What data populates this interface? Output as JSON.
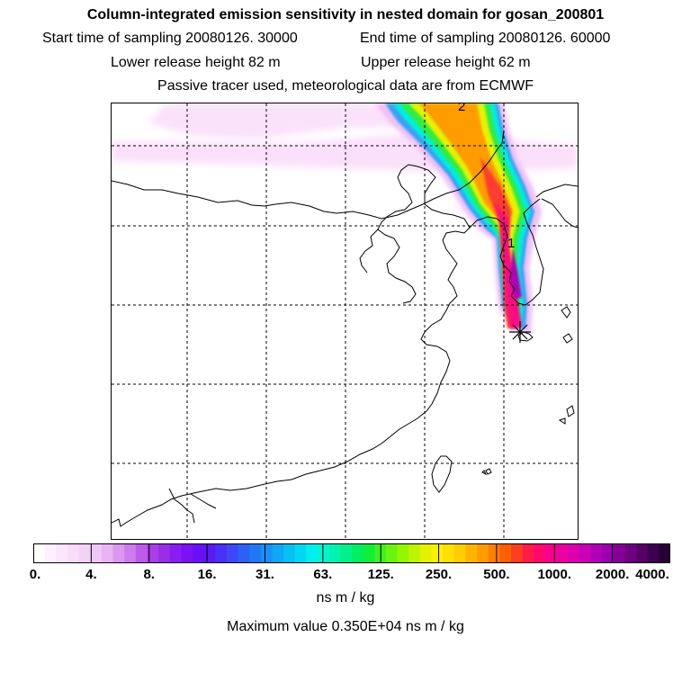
{
  "figure": {
    "title": "Column-integrated emission sensitivity in nested domain for gosan_200801",
    "start_sampling": "Start time of sampling 20080126. 30000",
    "end_sampling": "End time of sampling 20080126. 60000",
    "lower_release": "Lower release height   82 m",
    "upper_release": "Upper release height   62 m",
    "info": "Passive tracer used, meteorological data are from ECMWF",
    "units": "ns m / kg",
    "max_value": "Maximum value  0.350E+04 ns m / kg"
  },
  "chart_data": {
    "type": "heatmap",
    "title": "Column-integrated emission sensitivity in nested domain for gosan_200801",
    "colorbar_label": "ns m / kg",
    "colorbar_ticks": [
      "0.",
      "4.",
      "8.",
      "16.",
      "31.",
      "63.",
      "125.",
      "250.",
      "500.",
      "1000.",
      "2000.",
      "4000."
    ],
    "max_value": 3500,
    "plume_labels": [
      "2",
      "1"
    ],
    "receptor": "Gosan",
    "colors": {
      "bands": [
        "#ffffff",
        "#fff0ff",
        "#fce6fc",
        "#f8dcfa",
        "#f4d2f8",
        "#f0c8f6",
        "#e8b4f4",
        "#dc98f0",
        "#cc7cec",
        "#bc5ce8",
        "#a840e6",
        "#9a2ee8",
        "#8a1ef0",
        "#7a12f4",
        "#6a10f6",
        "#5a18f6",
        "#4a30f6",
        "#3c48f6",
        "#2e60f6",
        "#2078f6",
        "#1890f6",
        "#10a8f6",
        "#08c0f4",
        "#00d8f2",
        "#00f0ee",
        "#00f6d0",
        "#00f4b0",
        "#00f08a",
        "#00ee62",
        "#10ee3a",
        "#40f020",
        "#6af410",
        "#96f600",
        "#bef400",
        "#e2f200",
        "#fff000",
        "#ffe000",
        "#ffcc00",
        "#ffb400",
        "#ff9c00",
        "#ff8000",
        "#ff6000",
        "#ff3e20",
        "#ff1c48",
        "#ff0870",
        "#f80090",
        "#ec00a0",
        "#dc00ae",
        "#c800b6",
        "#b000b8",
        "#9a00b0",
        "#860098",
        "#6e0080",
        "#560068",
        "#3c0050",
        "#280038"
      ]
    }
  }
}
